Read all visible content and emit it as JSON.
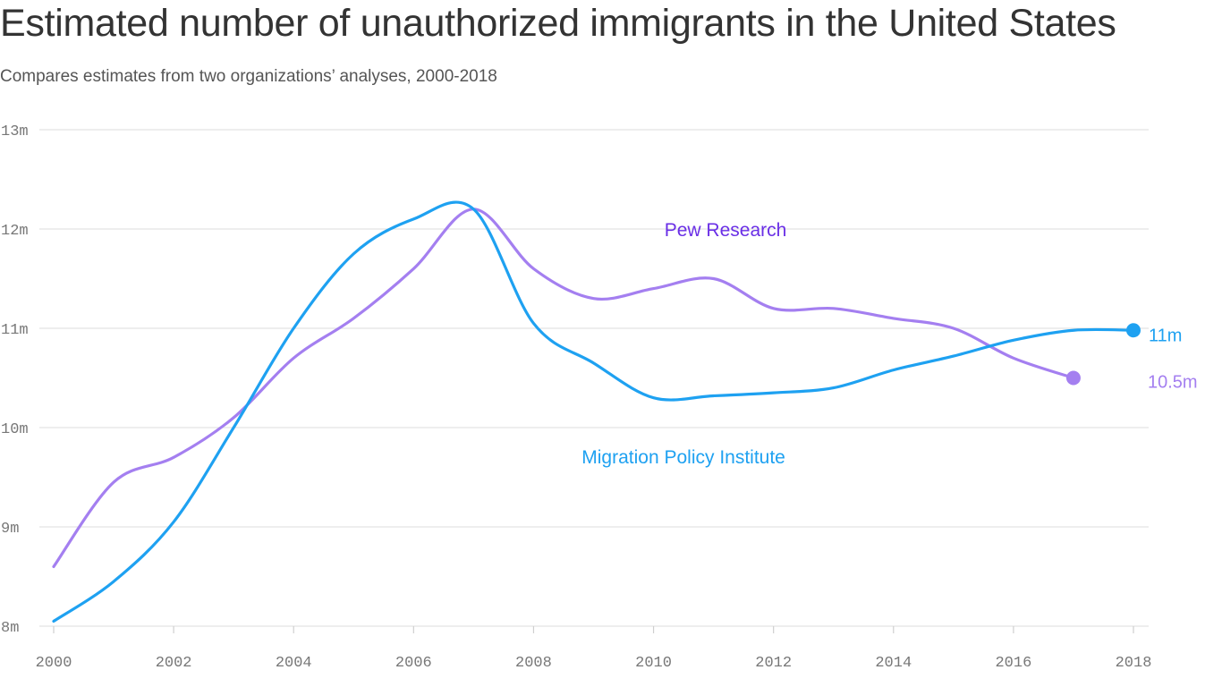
{
  "chart_data": {
    "type": "line",
    "title": "Estimated number of unauthorized immigrants in the United States",
    "subtitle": "Compares estimates from two organizations’ analyses, 2000-2018",
    "xlabel": "",
    "ylabel": "",
    "xlim": [
      2000,
      2018
    ],
    "ylim": [
      8,
      13
    ],
    "x_ticks": [
      2000,
      2002,
      2004,
      2006,
      2008,
      2010,
      2012,
      2014,
      2016,
      2018
    ],
    "x_tick_labels": [
      "2000",
      "2002",
      "2004",
      "2006",
      "2008",
      "2010",
      "2012",
      "2014",
      "2016",
      "2018"
    ],
    "y_ticks": [
      8,
      9,
      10,
      11,
      12,
      13
    ],
    "y_tick_labels": [
      "8m",
      "9m",
      "10m",
      "11m",
      "12m",
      "13m"
    ],
    "grid": true,
    "series": [
      {
        "name": "Pew Research",
        "color": "#a47ff0",
        "label_color": "#6a2fe6",
        "end_label": "10.5m",
        "x": [
          2000,
          2001,
          2002,
          2003,
          2004,
          2005,
          2006,
          2007,
          2008,
          2009,
          2010,
          2011,
          2012,
          2013,
          2014,
          2015,
          2016,
          2017
        ],
        "values": [
          8.6,
          9.45,
          9.7,
          10.1,
          10.7,
          11.1,
          11.6,
          12.2,
          11.6,
          11.3,
          11.4,
          11.5,
          11.2,
          11.2,
          11.1,
          11.0,
          10.7,
          10.5
        ]
      },
      {
        "name": "Migration Policy Institute",
        "color": "#1ea1f1",
        "label_color": "#1ea1f1",
        "end_label": "11m",
        "x": [
          2000,
          2001,
          2002,
          2003,
          2004,
          2005,
          2006,
          2007,
          2008,
          2009,
          2010,
          2011,
          2012,
          2013,
          2014,
          2015,
          2016,
          2017,
          2018
        ],
        "values": [
          8.05,
          8.45,
          9.05,
          10.0,
          11.0,
          11.75,
          12.1,
          12.2,
          11.05,
          10.65,
          10.3,
          10.32,
          10.35,
          10.4,
          10.58,
          10.72,
          10.88,
          10.98,
          10.98
        ]
      }
    ]
  }
}
